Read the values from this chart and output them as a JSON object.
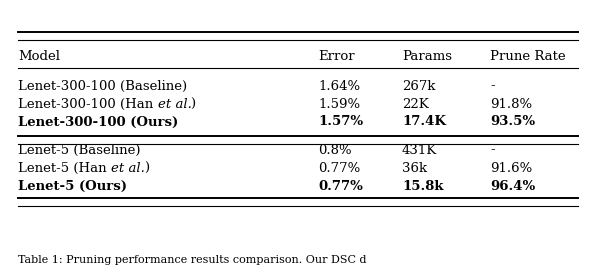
{
  "columns": [
    "Model",
    "Error",
    "Params",
    "Prune Rate"
  ],
  "rows": [
    {
      "cells": [
        "Lenet-300-100 (Baseline)",
        "1.64%",
        "267k",
        "-"
      ],
      "bold": false,
      "has_italic": false
    },
    {
      "cells": [
        "Lenet-300-100 (Han ",
        "et al.",
        ") ",
        "1.59%",
        "22K",
        "91.8%"
      ],
      "bold": false,
      "has_italic": true
    },
    {
      "cells": [
        "Lenet-300-100 (Ours)",
        "1.57%",
        "17.4K",
        "93.5%"
      ],
      "bold": true,
      "has_italic": false
    },
    {
      "cells": [
        "Lenet-5 (Baseline)",
        "0.8%",
        "431K",
        "-"
      ],
      "bold": false,
      "has_italic": false
    },
    {
      "cells": [
        "Lenet-5 (Han ",
        "et al.",
        ") ",
        "0.77%",
        "36k",
        "91.6%"
      ],
      "bold": false,
      "has_italic": true
    },
    {
      "cells": [
        "Lenet-5 (Ours)",
        "0.77%",
        "15.8k",
        "96.4%"
      ],
      "bold": true,
      "has_italic": false
    }
  ],
  "caption": "Table 1: Pruning performance results comparison. Our DSC d",
  "background_color": "#ffffff",
  "text_color": "#000000",
  "font_size": 9.5,
  "caption_font_size": 8.0
}
